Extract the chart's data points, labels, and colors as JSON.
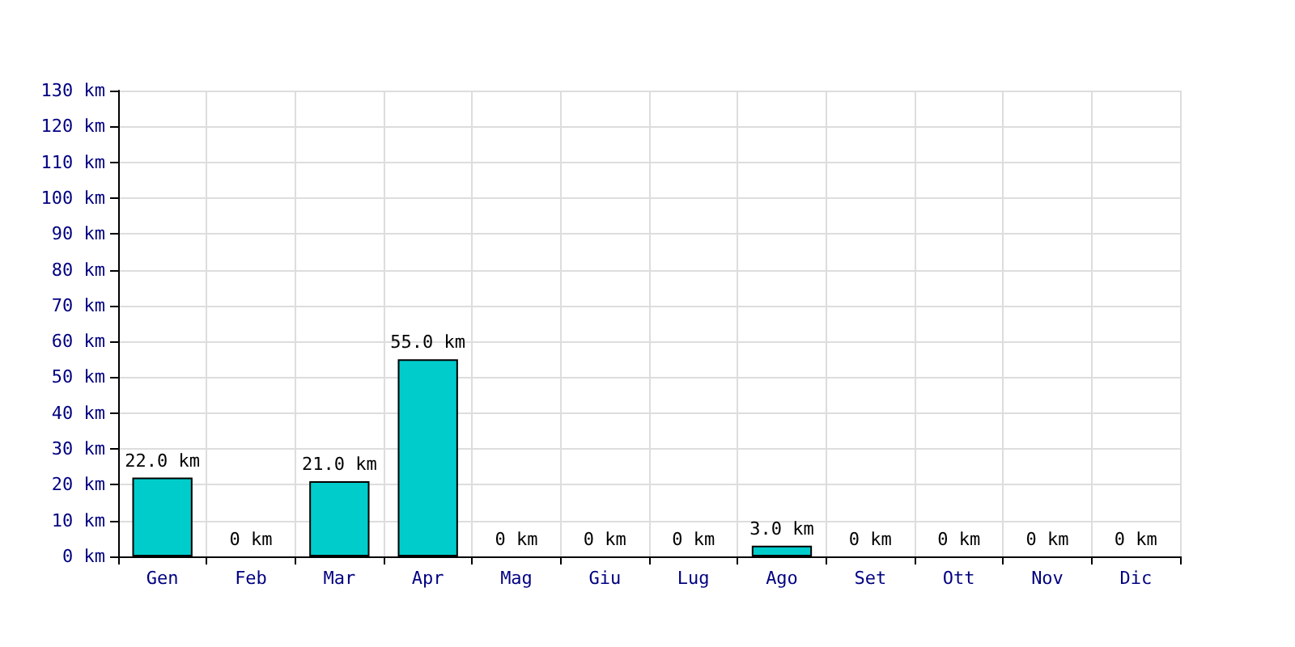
{
  "chart_data": {
    "type": "bar",
    "categories": [
      "Gen",
      "Feb",
      "Mar",
      "Apr",
      "Mag",
      "Giu",
      "Lug",
      "Ago",
      "Set",
      "Ott",
      "Nov",
      "Dic"
    ],
    "values": [
      22,
      0,
      21,
      55,
      0,
      0,
      0,
      3,
      0,
      0,
      0,
      0
    ],
    "value_labels": [
      "22.0 km",
      "0 km",
      "21.0 km",
      "55.0 km",
      "0 km",
      "0 km",
      "0 km",
      "3.0 km",
      "0 km",
      "0 km",
      "0 km",
      "0 km"
    ],
    "color": "#00cccc",
    "ylim": [
      0,
      130
    ],
    "yticks": [
      {
        "value": 0,
        "label": "0 km"
      },
      {
        "value": 10,
        "label": "10 km"
      },
      {
        "value": 20,
        "label": "20 km"
      },
      {
        "value": 30,
        "label": "30 km"
      },
      {
        "value": 40,
        "label": "40 km"
      },
      {
        "value": 50,
        "label": "50 km"
      },
      {
        "value": 60,
        "label": "60 km"
      },
      {
        "value": 70,
        "label": "70 km"
      },
      {
        "value": 80,
        "label": "80 km"
      },
      {
        "value": 90,
        "label": "90 km"
      },
      {
        "value": 100,
        "label": "100 km"
      },
      {
        "value": 110,
        "label": "110 km"
      },
      {
        "value": 120,
        "label": "120 km"
      },
      {
        "value": 130,
        "label": "130 km"
      }
    ],
    "grid": true
  }
}
